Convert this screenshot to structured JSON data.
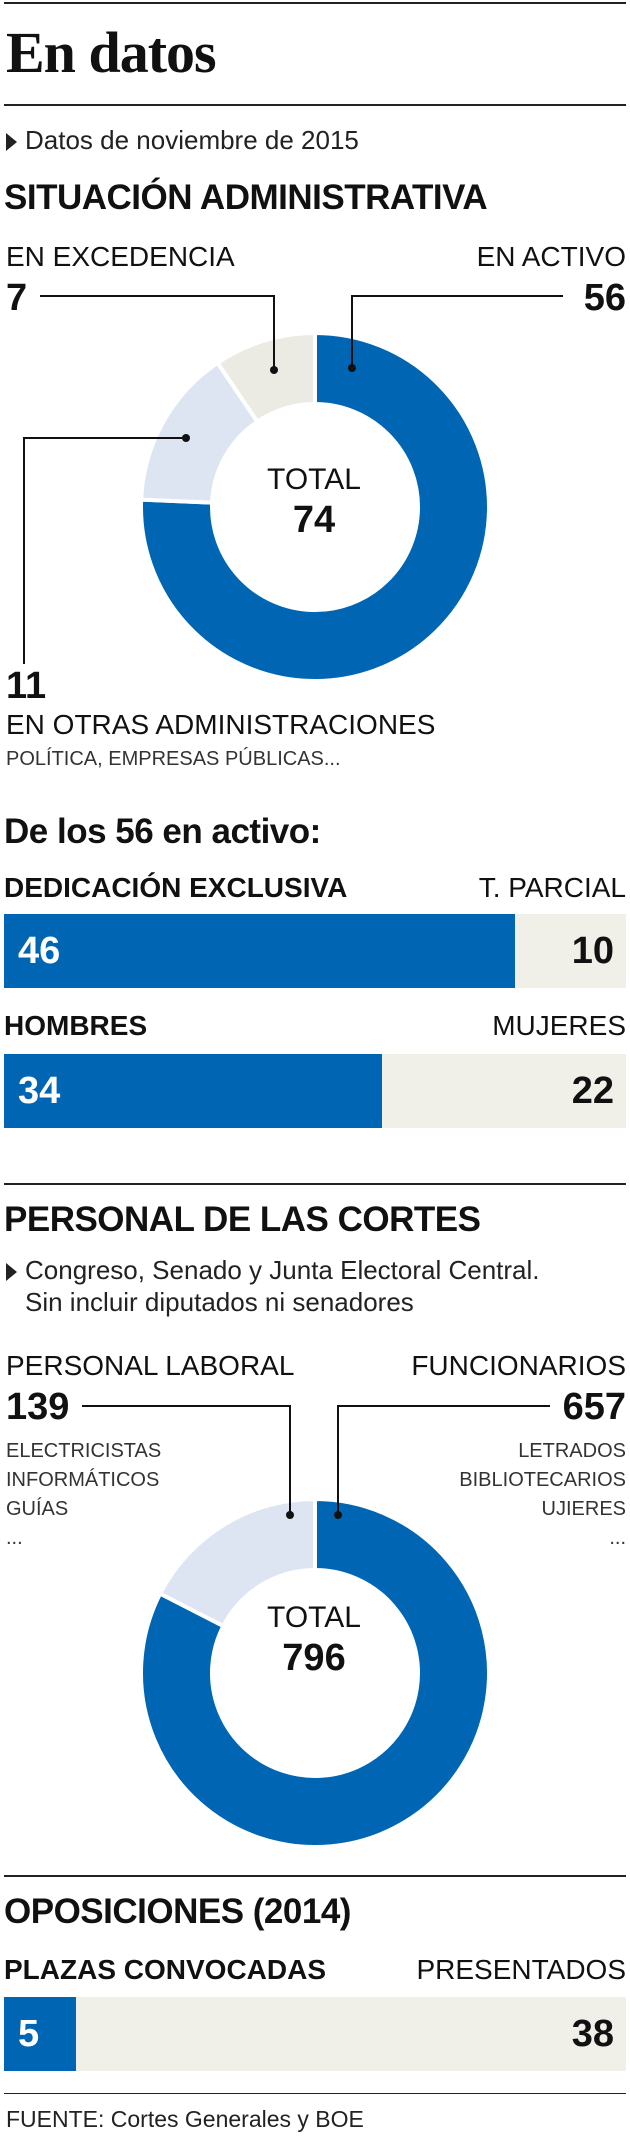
{
  "header": {
    "title": "En datos",
    "date_note": "Datos de noviembre de 2015"
  },
  "situacion": {
    "title": "SITUACIÓN ADMINISTRATIVA",
    "excedencia_label": "EN EXCEDENCIA",
    "excedencia_value": "7",
    "activo_label": "EN ACTIVO",
    "activo_value": "56",
    "otras_value": "11",
    "otras_label": "EN OTRAS ADMINISTRACIONES",
    "otras_sub": "POLÍTICA, EMPRESAS PÚBLICAS...",
    "total_label": "TOTAL",
    "total_value": "74"
  },
  "activos": {
    "title": "De los 56 en activo:",
    "dedicacion_label": "DEDICACIÓN EXCLUSIVA",
    "parcial_label": "T. PARCIAL",
    "dedicacion_value": "46",
    "parcial_value": "10",
    "hombres_label": "HOMBRES",
    "mujeres_label": "MUJERES",
    "hombres_value": "34",
    "mujeres_value": "22"
  },
  "personal": {
    "title": "PERSONAL DE LAS CORTES",
    "note_line1": "Congreso, Senado y Junta Electoral Central.",
    "note_line2": "Sin incluir diputados ni senadores",
    "laboral_label": "PERSONAL LABORAL",
    "laboral_value": "139",
    "laboral_items": [
      "ELECTRICISTAS",
      "INFORMÁTICOS",
      "GUÍAS",
      "..."
    ],
    "funcionarios_label": "FUNCIONARIOS",
    "funcionarios_value": "657",
    "funcionarios_items": [
      "LETRADOS",
      "BIBLIOTECARIOS",
      "UJIERES",
      "..."
    ],
    "total_label": "TOTAL",
    "total_value": "796"
  },
  "oposiciones": {
    "title": "OPOSICIONES (2014)",
    "plazas_label": "PLAZAS CONVOCADAS",
    "presentados_label": "PRESENTADOS",
    "plazas_value": "5",
    "presentados_value": "38"
  },
  "footer": {
    "source": "FUENTE: Cortes Generales y BOE"
  },
  "colors": {
    "primary": "#0066b3",
    "light_blue": "#dde5f3",
    "beige": "#ebebe4",
    "track": "#f0efe8"
  },
  "chart_data": [
    {
      "type": "pie",
      "title": "SITUACIÓN ADMINISTRATIVA",
      "categories": [
        "EN ACTIVO",
        "EN OTRAS ADMINISTRACIONES",
        "EN EXCEDENCIA"
      ],
      "values": [
        56,
        11,
        7
      ],
      "total": 74
    },
    {
      "type": "bar",
      "title": "De los 56 en activo:",
      "categories": [
        "DEDICACIÓN EXCLUSIVA",
        "T. PARCIAL"
      ],
      "values": [
        46,
        10
      ]
    },
    {
      "type": "bar",
      "categories": [
        "HOMBRES",
        "MUJERES"
      ],
      "values": [
        34,
        22
      ]
    },
    {
      "type": "pie",
      "title": "PERSONAL DE LAS CORTES",
      "categories": [
        "FUNCIONARIOS",
        "PERSONAL LABORAL"
      ],
      "values": [
        657,
        139
      ],
      "total": 796
    },
    {
      "type": "bar",
      "title": "OPOSICIONES (2014)",
      "categories": [
        "PLAZAS CONVOCADAS",
        "PRESENTADOS"
      ],
      "values": [
        5,
        38
      ]
    }
  ]
}
